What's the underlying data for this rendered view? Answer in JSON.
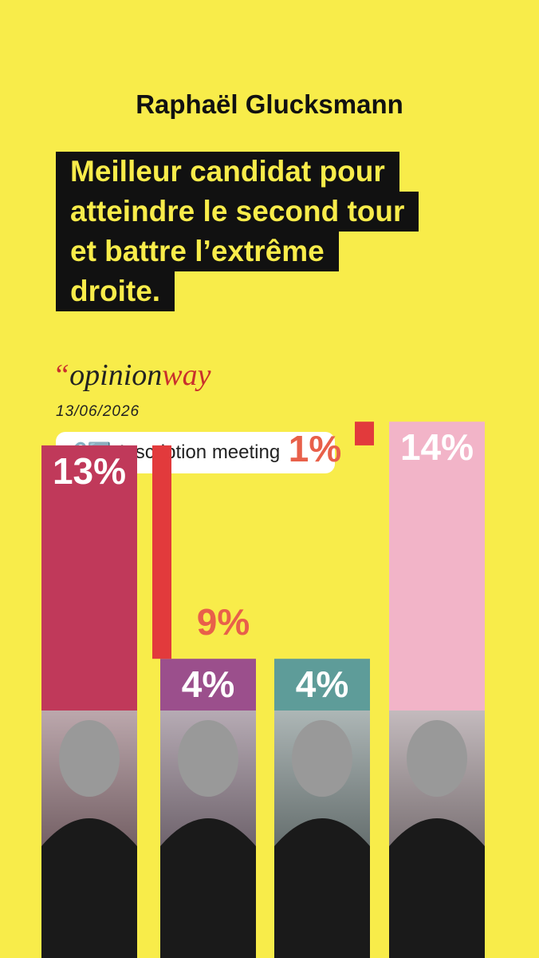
{
  "header": {
    "name": "Raphaël Glucksmann",
    "headline": [
      "Meilleur candidat pour",
      "atteindre le second tour",
      "et battre l’extrême",
      "droite."
    ]
  },
  "source": {
    "quote": "“",
    "brand_main": "opinion",
    "brand_accent": "way",
    "date": "13/06/2026"
  },
  "button": {
    "icons": "🔗➡️",
    "label": "Inscription meeting"
  },
  "chart_data": {
    "type": "bar",
    "categories": [
      null,
      null,
      null,
      null
    ],
    "values": [
      13,
      4,
      4,
      14
    ],
    "value_labels": [
      "13%",
      "4%",
      "4%",
      "14%"
    ],
    "colors": [
      "#c0395a",
      "#9b4f8c",
      "#5e9c99",
      "#f2b4c8"
    ],
    "gaps": {
      "values": [
        9,
        1
      ],
      "value_labels": [
        "9%",
        "1%"
      ],
      "color": "#e23a3c"
    }
  }
}
